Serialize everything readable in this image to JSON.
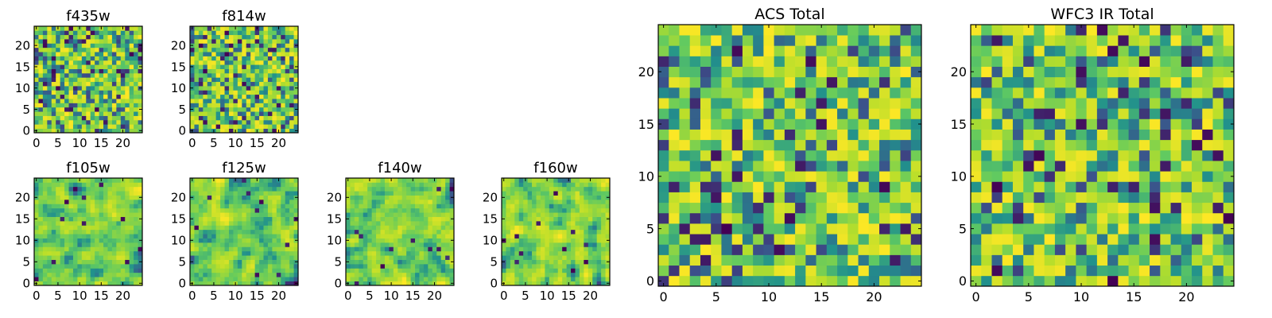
{
  "chart_data": [
    {
      "type": "heatmap",
      "title": "f435w",
      "grid_size": 25,
      "xlim": [
        -0.5,
        24.5
      ],
      "ylim": [
        -0.5,
        24.5
      ],
      "xticks": [
        0,
        5,
        10,
        15,
        20
      ],
      "yticks": [
        0,
        5,
        10,
        15,
        20
      ],
      "xlabel": "",
      "ylabel": "",
      "colormap": "viridis",
      "texture": "speckled",
      "seed": 11
    },
    {
      "type": "heatmap",
      "title": "f814w",
      "grid_size": 25,
      "xlim": [
        -0.5,
        24.5
      ],
      "ylim": [
        -0.5,
        24.5
      ],
      "xticks": [
        0,
        5,
        10,
        15,
        20
      ],
      "yticks": [
        0,
        5,
        10,
        15,
        20
      ],
      "xlabel": "",
      "ylabel": "",
      "colormap": "viridis",
      "texture": "speckled",
      "seed": 23
    },
    {
      "type": "heatmap",
      "title": "f105w",
      "grid_size": 25,
      "xlim": [
        -0.5,
        24.5
      ],
      "ylim": [
        -0.5,
        24.5
      ],
      "xticks": [
        0,
        5,
        10,
        15,
        20
      ],
      "yticks": [
        0,
        5,
        10,
        15,
        20
      ],
      "xlabel": "",
      "ylabel": "",
      "colormap": "viridis",
      "texture": "smooth",
      "seed": 37
    },
    {
      "type": "heatmap",
      "title": "f125w",
      "grid_size": 25,
      "xlim": [
        -0.5,
        24.5
      ],
      "ylim": [
        -0.5,
        24.5
      ],
      "xticks": [
        0,
        5,
        10,
        15,
        20
      ],
      "yticks": [
        0,
        5,
        10,
        15,
        20
      ],
      "xlabel": "",
      "ylabel": "",
      "colormap": "viridis",
      "texture": "smooth",
      "seed": 41
    },
    {
      "type": "heatmap",
      "title": "f140w",
      "grid_size": 25,
      "xlim": [
        -0.5,
        24.5
      ],
      "ylim": [
        -0.5,
        24.5
      ],
      "xticks": [
        0,
        5,
        10,
        15,
        20
      ],
      "yticks": [
        0,
        5,
        10,
        15,
        20
      ],
      "xlabel": "",
      "ylabel": "",
      "colormap": "viridis",
      "texture": "smooth",
      "seed": 53
    },
    {
      "type": "heatmap",
      "title": "f160w",
      "grid_size": 25,
      "xlim": [
        -0.5,
        24.5
      ],
      "ylim": [
        -0.5,
        24.5
      ],
      "xticks": [
        0,
        5,
        10,
        15,
        20
      ],
      "yticks": [
        0,
        5,
        10,
        15,
        20
      ],
      "xlabel": "",
      "ylabel": "",
      "colormap": "viridis",
      "texture": "smooth",
      "seed": 67
    },
    {
      "type": "heatmap",
      "title": "ACS Total",
      "grid_size": 25,
      "xlim": [
        -0.5,
        24.5
      ],
      "ylim": [
        -0.5,
        24.5
      ],
      "xticks": [
        0,
        5,
        10,
        15,
        20
      ],
      "yticks": [
        0,
        5,
        10,
        15,
        20
      ],
      "xlabel": "",
      "ylabel": "",
      "colormap": "viridis",
      "texture": "blocky",
      "seed": 79
    },
    {
      "type": "heatmap",
      "title": "WFC3 IR Total",
      "grid_size": 25,
      "xlim": [
        -0.5,
        24.5
      ],
      "ylim": [
        -0.5,
        24.5
      ],
      "xticks": [
        0,
        5,
        10,
        15,
        20
      ],
      "yticks": [
        0,
        5,
        10,
        15,
        20
      ],
      "xlabel": "",
      "ylabel": "",
      "colormap": "viridis",
      "texture": "blocky",
      "seed": 97
    }
  ],
  "colormap_stops": [
    "#440154",
    "#3b528b",
    "#21918c",
    "#5ec962",
    "#b5de2b",
    "#fde725"
  ]
}
